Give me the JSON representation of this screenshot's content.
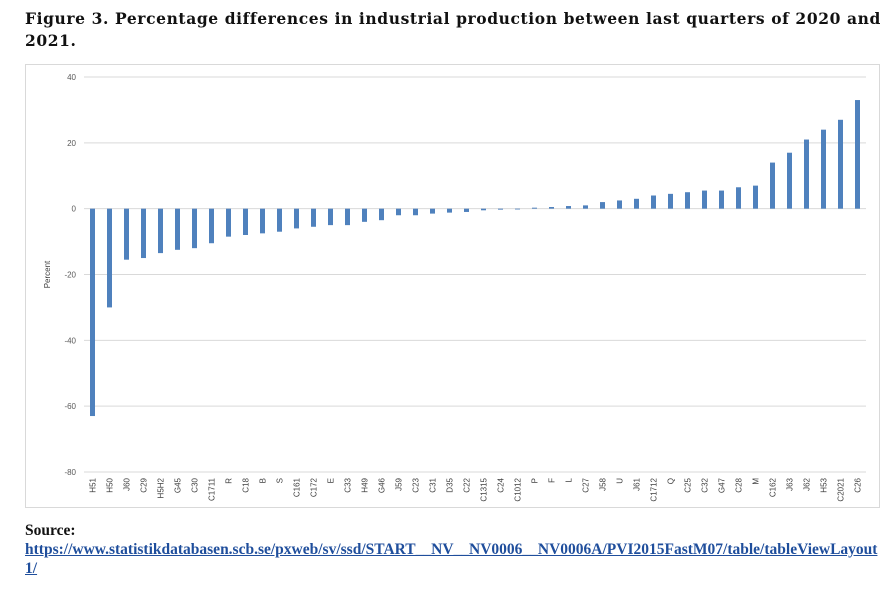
{
  "figure": {
    "title": "Figure 3. Percentage differences in industrial production between last quarters of 2020 and 2021."
  },
  "source": {
    "label": "Source:",
    "url": "https://www.statistikdatabasen.scb.se/pxweb/sv/ssd/START__NV__NV0006__NV0006A/PVI2015FastM07/table/tableViewLayout1/"
  },
  "chart_data": {
    "type": "bar",
    "ylabel": "Percent",
    "xlabel": "",
    "ylim": [
      -80,
      40
    ],
    "yticks": [
      40,
      20,
      0,
      -20,
      -40,
      -60,
      -80
    ],
    "grid": true,
    "bar_color": "#4f81bd",
    "categories": [
      "H51",
      "H50",
      "J60",
      "C29",
      "H5H2",
      "G45",
      "C30",
      "C1711",
      "R",
      "C18",
      "B",
      "S",
      "C161",
      "C172",
      "E",
      "C33",
      "H49",
      "G46",
      "J59",
      "C23",
      "C31",
      "D35",
      "C22",
      "C1315",
      "C24",
      "C1012",
      "P",
      "F",
      "L",
      "C27",
      "J58",
      "U",
      "J61",
      "C1712",
      "Q",
      "C25",
      "C32",
      "G47",
      "C28",
      "M",
      "C162",
      "J63",
      "J62",
      "H53",
      "C2021",
      "C26"
    ],
    "values": [
      -63,
      -30,
      -15.5,
      -15,
      -13.5,
      -12.5,
      -12,
      -10.5,
      -8.5,
      -8,
      -7.5,
      -7,
      -6,
      -5.5,
      -5,
      -5,
      -4,
      -3.5,
      -2,
      -2,
      -1.5,
      -1.2,
      -1,
      -0.5,
      -0.3,
      -0.2,
      0.3,
      0.5,
      0.8,
      1,
      2,
      2.5,
      3,
      4,
      4.5,
      5,
      5.5,
      5.5,
      6.5,
      7,
      14,
      17,
      21,
      24,
      27,
      33
    ]
  }
}
